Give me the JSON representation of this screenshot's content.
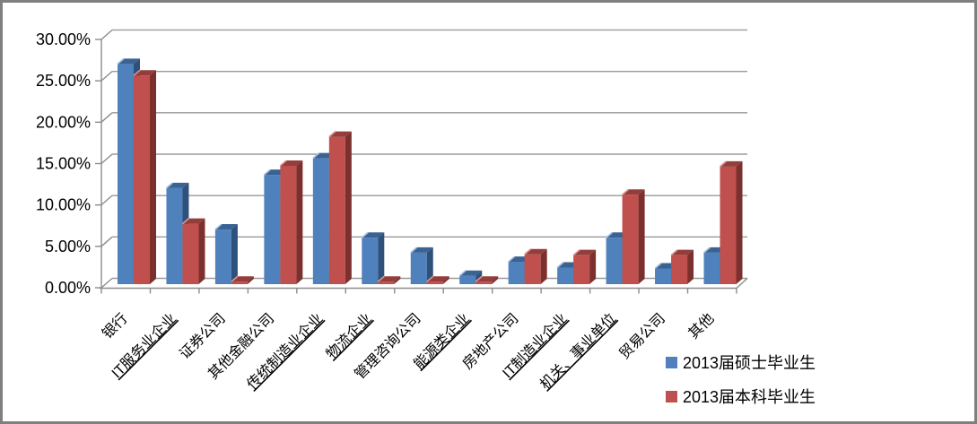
{
  "chart_data": {
    "type": "bar",
    "effect": "3d-clustered",
    "title": "",
    "xlabel": "",
    "ylabel": "",
    "categories": [
      "银行",
      "IT服务业企业",
      "证券公司",
      "其他金融公司",
      "传统制造业企业",
      "物流企业",
      "管理咨询公司",
      "能源类企业",
      "房地产公司",
      "IT制造业企业",
      "机关、事业单位",
      "贸易公司",
      "其他"
    ],
    "underlined_categories": [
      "IT服务业企业",
      "传统制造业企业",
      "物流企业",
      "能源类企业",
      "IT制造业企业",
      "机关、事业单位"
    ],
    "series": [
      {
        "name": "2013届硕士毕业生",
        "color": "#4F81BD",
        "values": [
          26.6,
          11.6,
          6.6,
          13.2,
          15.2,
          5.6,
          3.8,
          1.0,
          2.7,
          2.0,
          5.6,
          1.9,
          3.8
        ]
      },
      {
        "name": "2013届本科毕业生",
        "color": "#C0504D",
        "values": [
          25.2,
          7.3,
          0.3,
          14.3,
          17.8,
          0.3,
          0.3,
          0.3,
          3.6,
          3.5,
          10.8,
          3.5,
          14.2
        ]
      }
    ],
    "y_axis": {
      "min": 0,
      "max": 30,
      "step": 5,
      "ticks": [
        "0.00%",
        "5.00%",
        "10.00%",
        "15.00%",
        "20.00%",
        "25.00%",
        "30.00%"
      ]
    },
    "grid": true,
    "legend_position": "bottom-right"
  },
  "colors": {
    "blue_front": "#4F81BD",
    "blue_top": "#3A6293",
    "blue_side": "#2E517C",
    "blue_highlight": "#A7BFDC",
    "red_front": "#C0504D",
    "red_top": "#943D3A",
    "red_side": "#7C302E",
    "red_highlight": "#D99694",
    "gridline": "#9a9a9a",
    "axis": "#8c8c8c",
    "frame_border": "#7f7f7f",
    "text": "#000000"
  }
}
